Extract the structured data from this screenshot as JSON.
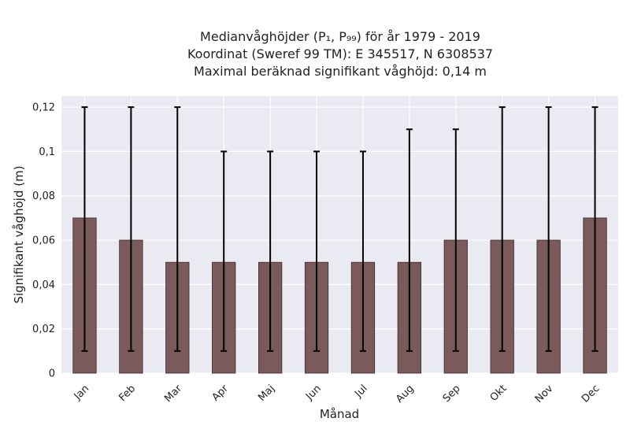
{
  "chart_data": {
    "type": "bar",
    "title_lines": [
      "Medianvåghöjder (P₁, P₉₉) för år 1979 - 2019",
      "Koordinat (Sweref 99 TM): E 345517, N 6308537",
      "Maximal beräknad signifikant våghöjd: 0,14 m"
    ],
    "xlabel": "Månad",
    "ylabel": "Signifikant våghöjd (m)",
    "categories": [
      "Jan",
      "Feb",
      "Mar",
      "Apr",
      "Maj",
      "Jun",
      "Jul",
      "Aug",
      "Sep",
      "Okt",
      "Nov",
      "Dec"
    ],
    "values": [
      0.07,
      0.06,
      0.05,
      0.05,
      0.05,
      0.05,
      0.05,
      0.05,
      0.06,
      0.06,
      0.06,
      0.07
    ],
    "error_low": [
      0.01,
      0.01,
      0.01,
      0.01,
      0.01,
      0.01,
      0.01,
      0.01,
      0.01,
      0.01,
      0.01,
      0.01
    ],
    "error_high": [
      0.12,
      0.12,
      0.12,
      0.1,
      0.1,
      0.1,
      0.1,
      0.11,
      0.11,
      0.12,
      0.12,
      0.12
    ],
    "yticks": [
      "0",
      "0,02",
      "0,04",
      "0,06",
      "0,08",
      "0,1",
      "0,12"
    ],
    "ytick_values": [
      0,
      0.02,
      0.04,
      0.06,
      0.08,
      0.1,
      0.12
    ],
    "ylim": [
      0,
      0.125
    ],
    "grid": true,
    "colors": {
      "bar": "#7a5a5a",
      "bar_edge": "#3a2a2a",
      "error": "#000000",
      "plot_bg": "#eaeaf2",
      "grid": "#ffffff"
    }
  }
}
